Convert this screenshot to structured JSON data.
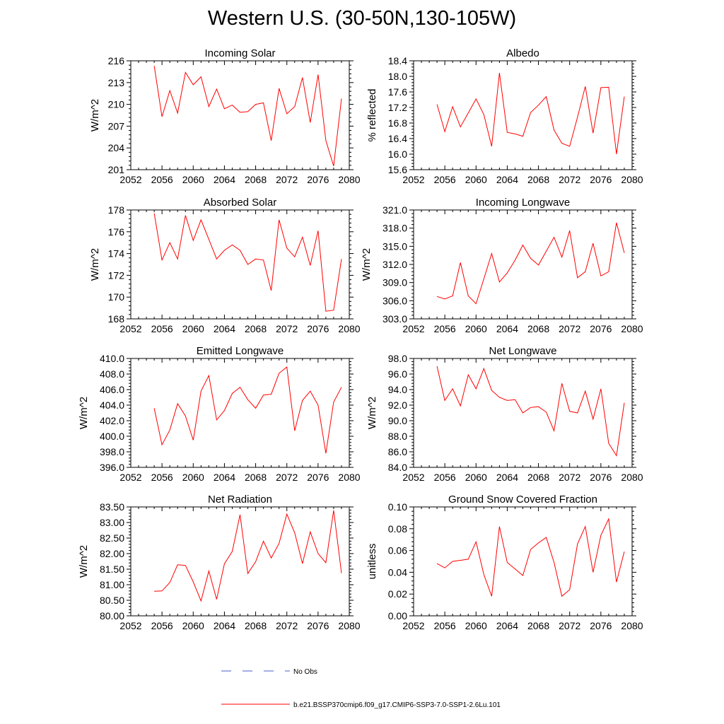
{
  "title": "Western U.S. (30-50N,130-105W)",
  "colors": {
    "series": "#ff0000",
    "obs": "#4a5ccf",
    "axis": "#000000"
  },
  "legend": {
    "items": [
      {
        "name": "No Obs",
        "style": "dashed",
        "color": "#4a5ccf"
      },
      {
        "name": "b.e21.BSSP370cmip6.f09_g17.CMIP6-SSP3-7.0-SSP1-2.6Lu.101",
        "style": "solid",
        "color": "#ff0000"
      }
    ]
  },
  "chart_data": [
    {
      "type": "line",
      "title": "Incoming Solar",
      "xlabel": "",
      "ylabel": "W/m^2",
      "xlim": [
        2052,
        2080
      ],
      "ylim": [
        201,
        216
      ],
      "xticks": [
        "2052",
        "2056",
        "2060",
        "2064",
        "2068",
        "2072",
        "2076",
        "2080"
      ],
      "yticks": [
        "201",
        "204",
        "207",
        "210",
        "213",
        "216"
      ],
      "x": [
        2055,
        2056,
        2057,
        2058,
        2059,
        2060,
        2061,
        2062,
        2063,
        2064,
        2065,
        2066,
        2067,
        2068,
        2069,
        2070,
        2071,
        2072,
        2073,
        2074,
        2075,
        2076,
        2077,
        2078,
        2079
      ],
      "series": [
        {
          "values": [
            215.3,
            208.3,
            211.9,
            208.8,
            214.4,
            212.7,
            213.8,
            209.7,
            212.1,
            209.4,
            209.9,
            208.9,
            209.0,
            210.0,
            210.2,
            205.0,
            212.2,
            208.7,
            209.7,
            213.7,
            207.5,
            214.1,
            205.0,
            201.5,
            210.8
          ]
        }
      ]
    },
    {
      "type": "line",
      "title": "Albedo",
      "xlabel": "",
      "ylabel": "% reflected",
      "xlim": [
        2052,
        2080
      ],
      "ylim": [
        15.6,
        18.4
      ],
      "xticks": [
        "2052",
        "2056",
        "2060",
        "2064",
        "2068",
        "2072",
        "2076",
        "2080"
      ],
      "yticks": [
        "15.6",
        "16.0",
        "16.4",
        "16.8",
        "17.2",
        "17.6",
        "18.0",
        "18.4"
      ],
      "x": [
        2055,
        2056,
        2057,
        2058,
        2059,
        2060,
        2061,
        2062,
        2063,
        2064,
        2065,
        2066,
        2067,
        2068,
        2069,
        2070,
        2071,
        2072,
        2073,
        2074,
        2075,
        2076,
        2077,
        2078,
        2079
      ],
      "series": [
        {
          "values": [
            17.28,
            16.58,
            17.22,
            16.7,
            17.06,
            17.42,
            17.02,
            16.2,
            18.09,
            16.56,
            16.52,
            16.46,
            17.07,
            17.26,
            17.48,
            16.62,
            16.28,
            16.2,
            16.95,
            17.74,
            16.54,
            17.71,
            17.72,
            16.0,
            17.48
          ]
        }
      ]
    },
    {
      "type": "line",
      "title": "Absorbed Solar",
      "xlabel": "",
      "ylabel": "W/m^2",
      "xlim": [
        2052,
        2080
      ],
      "ylim": [
        168,
        178
      ],
      "xticks": [
        "2052",
        "2056",
        "2060",
        "2064",
        "2068",
        "2072",
        "2076",
        "2080"
      ],
      "yticks": [
        "168",
        "170",
        "172",
        "174",
        "176",
        "178"
      ],
      "x": [
        2055,
        2056,
        2057,
        2058,
        2059,
        2060,
        2061,
        2062,
        2063,
        2064,
        2065,
        2066,
        2067,
        2068,
        2069,
        2070,
        2071,
        2072,
        2073,
        2074,
        2075,
        2076,
        2077,
        2078,
        2079
      ],
      "series": [
        {
          "values": [
            177.7,
            173.4,
            175.0,
            173.5,
            177.5,
            175.2,
            177.1,
            175.3,
            173.5,
            174.3,
            174.8,
            174.3,
            173.0,
            173.5,
            173.4,
            170.6,
            177.1,
            174.5,
            173.7,
            175.5,
            172.9,
            176.1,
            168.7,
            168.8,
            173.5
          ]
        }
      ]
    },
    {
      "type": "line",
      "title": "Incoming Longwave",
      "xlabel": "",
      "ylabel": "W/m^2",
      "xlim": [
        2052,
        2080
      ],
      "ylim": [
        303,
        321
      ],
      "xticks": [
        "2052",
        "2056",
        "2060",
        "2064",
        "2068",
        "2072",
        "2076",
        "2080"
      ],
      "yticks": [
        "303.0",
        "306.0",
        "309.0",
        "312.0",
        "315.0",
        "318.0",
        "321.0"
      ],
      "x": [
        2055,
        2056,
        2057,
        2058,
        2059,
        2060,
        2061,
        2062,
        2063,
        2064,
        2065,
        2066,
        2067,
        2068,
        2069,
        2070,
        2071,
        2072,
        2073,
        2074,
        2075,
        2076,
        2077,
        2078,
        2079
      ],
      "series": [
        {
          "values": [
            306.7,
            306.3,
            306.8,
            312.3,
            306.8,
            305.5,
            309.6,
            313.8,
            309.1,
            310.6,
            312.7,
            315.2,
            313.0,
            311.9,
            314.2,
            316.5,
            313.2,
            317.6,
            309.8,
            310.8,
            315.5,
            310.1,
            310.8,
            318.9,
            313.9
          ]
        }
      ]
    },
    {
      "type": "line",
      "title": "Emitted Longwave",
      "xlabel": "",
      "ylabel": "W/m^2",
      "xlim": [
        2052,
        2080
      ],
      "ylim": [
        396,
        410
      ],
      "xticks": [
        "2052",
        "2056",
        "2060",
        "2064",
        "2068",
        "2072",
        "2076",
        "2080"
      ],
      "yticks": [
        "396.0",
        "398.0",
        "400.0",
        "402.0",
        "404.0",
        "406.0",
        "408.0",
        "410.0"
      ],
      "x": [
        2055,
        2056,
        2057,
        2058,
        2059,
        2060,
        2061,
        2062,
        2063,
        2064,
        2065,
        2066,
        2067,
        2068,
        2069,
        2070,
        2071,
        2072,
        2073,
        2074,
        2075,
        2076,
        2077,
        2078,
        2079
      ],
      "series": [
        {
          "values": [
            403.6,
            398.9,
            400.8,
            404.2,
            402.6,
            399.5,
            405.8,
            407.8,
            402.1,
            403.3,
            405.5,
            406.3,
            404.7,
            403.6,
            405.3,
            405.4,
            408.1,
            408.9,
            400.7,
            404.6,
            405.8,
            404.0,
            397.8,
            404.4,
            406.3
          ]
        }
      ]
    },
    {
      "type": "line",
      "title": "Net Longwave",
      "xlabel": "",
      "ylabel": "W/m^2",
      "xlim": [
        2052,
        2080
      ],
      "ylim": [
        84,
        98
      ],
      "xticks": [
        "2052",
        "2056",
        "2060",
        "2064",
        "2068",
        "2072",
        "2076",
        "2080"
      ],
      "yticks": [
        "84.0",
        "86.0",
        "88.0",
        "90.0",
        "92.0",
        "94.0",
        "96.0",
        "98.0"
      ],
      "x": [
        2055,
        2056,
        2057,
        2058,
        2059,
        2060,
        2061,
        2062,
        2063,
        2064,
        2065,
        2066,
        2067,
        2068,
        2069,
        2070,
        2071,
        2072,
        2073,
        2074,
        2075,
        2076,
        2077,
        2078,
        2079
      ],
      "series": [
        {
          "values": [
            97.0,
            92.6,
            94.1,
            91.9,
            95.9,
            94.1,
            96.7,
            93.9,
            93.0,
            92.6,
            92.7,
            91.0,
            91.7,
            91.8,
            91.1,
            88.7,
            94.8,
            91.2,
            91.0,
            93.8,
            90.2,
            94.1,
            87.1,
            85.5,
            92.3
          ]
        }
      ]
    },
    {
      "type": "line",
      "title": "Net Radiation",
      "xlabel": "",
      "ylabel": "W/m^2",
      "xlim": [
        2052,
        2080
      ],
      "ylim": [
        80.0,
        83.5
      ],
      "xticks": [
        "2052",
        "2056",
        "2060",
        "2064",
        "2068",
        "2072",
        "2076",
        "2080"
      ],
      "yticks": [
        "80.00",
        "80.50",
        "81.00",
        "81.50",
        "82.00",
        "82.50",
        "83.00",
        "83.50"
      ],
      "x": [
        2055,
        2056,
        2057,
        2058,
        2059,
        2060,
        2061,
        2062,
        2063,
        2064,
        2065,
        2066,
        2067,
        2068,
        2069,
        2070,
        2071,
        2072,
        2073,
        2074,
        2075,
        2076,
        2077,
        2078,
        2079
      ],
      "series": [
        {
          "values": [
            80.79,
            80.8,
            81.07,
            81.64,
            81.62,
            81.09,
            80.48,
            81.44,
            80.53,
            81.67,
            82.07,
            83.25,
            81.36,
            81.74,
            82.4,
            81.86,
            82.33,
            83.27,
            82.67,
            81.68,
            82.7,
            82.0,
            81.71,
            83.39,
            81.37
          ]
        }
      ]
    },
    {
      "type": "line",
      "title": "Ground Snow Covered Fraction",
      "xlabel": "",
      "ylabel": "unitless",
      "xlim": [
        2052,
        2080
      ],
      "ylim": [
        0.0,
        0.1
      ],
      "xticks": [
        "2052",
        "2056",
        "2060",
        "2064",
        "2068",
        "2072",
        "2076",
        "2080"
      ],
      "yticks": [
        "0.00",
        "0.02",
        "0.04",
        "0.06",
        "0.08",
        "0.10"
      ],
      "x": [
        2055,
        2056,
        2057,
        2058,
        2059,
        2060,
        2061,
        2062,
        2063,
        2064,
        2065,
        2066,
        2067,
        2068,
        2069,
        2070,
        2071,
        2072,
        2073,
        2074,
        2075,
        2076,
        2077,
        2078,
        2079
      ],
      "series": [
        {
          "values": [
            0.048,
            0.044,
            0.05,
            0.051,
            0.052,
            0.068,
            0.038,
            0.018,
            0.082,
            0.049,
            0.043,
            0.037,
            0.061,
            0.067,
            0.072,
            0.049,
            0.018,
            0.024,
            0.066,
            0.082,
            0.04,
            0.074,
            0.089,
            0.031,
            0.059
          ]
        }
      ]
    }
  ]
}
